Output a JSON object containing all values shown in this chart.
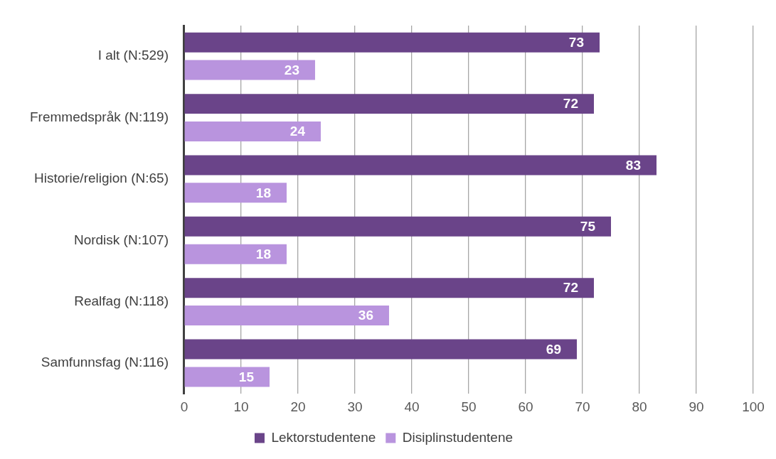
{
  "chart_data": {
    "type": "bar",
    "orientation": "horizontal",
    "categories": [
      "I alt (N:529)",
      "Fremmedspråk (N:119)",
      "Historie/religion (N:65)",
      "Nordisk (N:107)",
      "Realfag (N:118)",
      "Samfunnsfag (N:116)"
    ],
    "series": [
      {
        "name": "Lektorstudentene",
        "color": "#6a4489",
        "values": [
          73,
          72,
          83,
          75,
          72,
          69
        ]
      },
      {
        "name": "Disiplinstudentene",
        "color": "#b994de",
        "values": [
          23,
          24,
          18,
          18,
          36,
          15
        ]
      }
    ],
    "xlim": [
      0,
      100
    ],
    "xticks": [
      0,
      10,
      20,
      30,
      40,
      50,
      60,
      70,
      80,
      90,
      100
    ],
    "grid": "x",
    "legend": "bottom",
    "data_labels": true
  }
}
